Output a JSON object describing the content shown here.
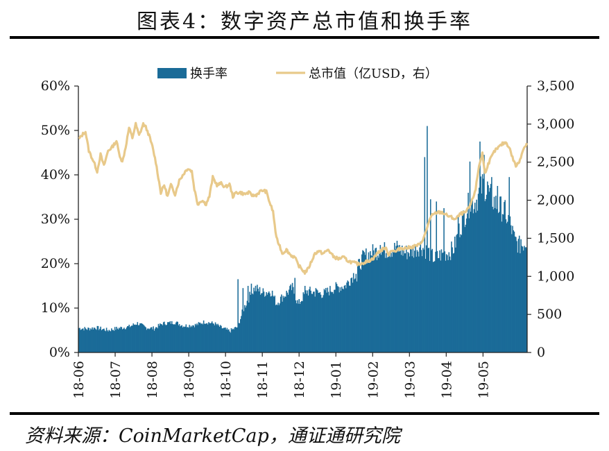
{
  "title": "图表4：数字资产总市值和换手率",
  "source": "资料来源：CoinMarketCap，通证通研究院",
  "colors": {
    "bar": "#1a6b98",
    "line": "#e8c98a",
    "text": "#111111",
    "axis": "#222222"
  },
  "chart_data": {
    "type": "bar+line",
    "categories": [
      "18-06",
      "18-07",
      "18-08",
      "18-09",
      "18-10",
      "18-11",
      "18-12",
      "19-01",
      "19-02",
      "19-03",
      "19-04",
      "19-05"
    ],
    "y_left": {
      "range": [
        0,
        60
      ],
      "ticks": [
        "0%",
        "10%",
        "20%",
        "30%",
        "40%",
        "50%",
        "60%"
      ]
    },
    "y_right": {
      "range": [
        0,
        3500
      ],
      "ticks": [
        "0",
        "500",
        "1,000",
        "1,500",
        "2,000",
        "2,500",
        "3,000",
        "3,500"
      ]
    },
    "legend": {
      "placement": "top",
      "entries": [
        "换手率",
        "总市值（亿USD，右）"
      ]
    },
    "series": [
      {
        "name": "换手率",
        "kind": "bar",
        "axis": "left",
        "unit": "%",
        "anchors": [
          [
            0,
            5.5
          ],
          [
            10,
            5.3
          ],
          [
            20,
            5.6
          ],
          [
            35,
            5.0
          ],
          [
            45,
            5.4
          ],
          [
            60,
            5.8
          ],
          [
            70,
            6.6
          ],
          [
            80,
            5.6
          ],
          [
            90,
            5.4
          ],
          [
            100,
            6.5
          ],
          [
            115,
            6.8
          ],
          [
            125,
            6.0
          ],
          [
            140,
            6.2
          ],
          [
            150,
            6.9
          ],
          [
            162,
            6.5
          ],
          [
            170,
            5.6
          ],
          [
            180,
            4.8
          ],
          [
            190,
            5.8
          ],
          [
            196,
            9.5
          ],
          [
            202,
            12.0
          ],
          [
            210,
            14.5
          ],
          [
            220,
            13.5
          ],
          [
            230,
            13.8
          ],
          [
            236,
            11.0
          ],
          [
            243,
            12.5
          ],
          [
            255,
            14.5
          ],
          [
            262,
            10.8
          ],
          [
            272,
            13.8
          ],
          [
            282,
            13.5
          ],
          [
            292,
            13.2
          ],
          [
            305,
            14.5
          ],
          [
            318,
            15.0
          ],
          [
            330,
            18.0
          ],
          [
            340,
            21.5
          ],
          [
            350,
            22.5
          ],
          [
            360,
            23.0
          ],
          [
            370,
            23.0
          ],
          [
            380,
            23.5
          ],
          [
            390,
            22.5
          ],
          [
            400,
            23.0
          ],
          [
            408,
            24.0
          ],
          [
            418,
            22.5
          ],
          [
            425,
            21.0
          ],
          [
            432,
            22.0
          ],
          [
            442,
            22.5
          ],
          [
            448,
            23.5
          ],
          [
            455,
            28.0
          ],
          [
            465,
            33.0
          ],
          [
            474,
            34.0
          ],
          [
            483,
            38.0
          ],
          [
            492,
            35.0
          ],
          [
            500,
            33.0
          ],
          [
            508,
            32.0
          ],
          [
            515,
            29.0
          ],
          [
            521,
            25.0
          ],
          [
            527,
            24.0
          ],
          [
            535,
            25.0
          ]
        ],
        "spikes": [
          [
            190,
            16.5
          ],
          [
            196,
            14.5
          ],
          [
            202,
            15.0
          ],
          [
            206,
            15.5
          ],
          [
            258,
            16.8
          ],
          [
            270,
            15.0
          ],
          [
            283,
            14.5
          ],
          [
            332,
            16.0
          ],
          [
            345,
            20.5
          ],
          [
            360,
            24.2
          ],
          [
            379,
            24.0
          ],
          [
            413,
            44.0
          ],
          [
            416,
            51.0
          ],
          [
            420,
            34.5
          ],
          [
            427,
            34.0
          ],
          [
            436,
            32.5
          ],
          [
            453,
            31.0
          ],
          [
            467,
            43.0
          ],
          [
            479,
            47.5
          ],
          [
            484,
            44.5
          ],
          [
            488,
            38.5
          ],
          [
            493,
            39.5
          ],
          [
            500,
            37.5
          ],
          [
            510,
            30.0
          ],
          [
            514,
            39.5
          ],
          [
            522,
            26.0
          ],
          [
            528,
            25.5
          ]
        ]
      },
      {
        "name": "总市值（亿USD，右）",
        "kind": "line",
        "axis": "right",
        "unit": "亿USD",
        "anchors": [
          [
            0,
            2800
          ],
          [
            5,
            2870
          ],
          [
            8,
            2900
          ],
          [
            12,
            2650
          ],
          [
            18,
            2500
          ],
          [
            22,
            2380
          ],
          [
            26,
            2600
          ],
          [
            30,
            2450
          ],
          [
            35,
            2650
          ],
          [
            40,
            2700
          ],
          [
            45,
            2780
          ],
          [
            48,
            2620
          ],
          [
            52,
            2500
          ],
          [
            56,
            2700
          ],
          [
            60,
            2950
          ],
          [
            64,
            2820
          ],
          [
            68,
            3000
          ],
          [
            72,
            2850
          ],
          [
            77,
            3000
          ],
          [
            80,
            2960
          ],
          [
            84,
            2850
          ],
          [
            88,
            2700
          ],
          [
            92,
            2500
          ],
          [
            95,
            2300
          ],
          [
            98,
            2100
          ],
          [
            102,
            2200
          ],
          [
            106,
            2050
          ],
          [
            110,
            2200
          ],
          [
            115,
            2080
          ],
          [
            120,
            2260
          ],
          [
            126,
            2360
          ],
          [
            130,
            2420
          ],
          [
            135,
            2380
          ],
          [
            138,
            2150
          ],
          [
            142,
            1950
          ],
          [
            147,
            2000
          ],
          [
            152,
            1950
          ],
          [
            156,
            2050
          ],
          [
            160,
            2300
          ],
          [
            165,
            2200
          ],
          [
            170,
            2220
          ],
          [
            175,
            2170
          ],
          [
            180,
            2210
          ],
          [
            184,
            2050
          ],
          [
            188,
            2100
          ],
          [
            193,
            2100
          ],
          [
            198,
            2080
          ],
          [
            203,
            2100
          ],
          [
            208,
            2060
          ],
          [
            212,
            2070
          ],
          [
            216,
            2110
          ],
          [
            220,
            2130
          ],
          [
            224,
            2110
          ],
          [
            228,
            1970
          ],
          [
            232,
            1850
          ],
          [
            236,
            1500
          ],
          [
            240,
            1400
          ],
          [
            243,
            1300
          ],
          [
            248,
            1350
          ],
          [
            253,
            1280
          ],
          [
            258,
            1250
          ],
          [
            262,
            1150
          ],
          [
            266,
            1100
          ],
          [
            270,
            1050
          ],
          [
            274,
            1100
          ],
          [
            278,
            1200
          ],
          [
            282,
            1300
          ],
          [
            286,
            1330
          ],
          [
            292,
            1300
          ],
          [
            298,
            1350
          ],
          [
            304,
            1260
          ],
          [
            310,
            1230
          ],
          [
            316,
            1250
          ],
          [
            322,
            1200
          ],
          [
            328,
            1180
          ],
          [
            334,
            1160
          ],
          [
            340,
            1180
          ],
          [
            346,
            1200
          ],
          [
            352,
            1240
          ],
          [
            358,
            1320
          ],
          [
            362,
            1350
          ],
          [
            366,
            1380
          ],
          [
            370,
            1290
          ],
          [
            374,
            1350
          ],
          [
            378,
            1320
          ],
          [
            384,
            1370
          ],
          [
            390,
            1370
          ],
          [
            396,
            1380
          ],
          [
            402,
            1400
          ],
          [
            408,
            1420
          ],
          [
            414,
            1560
          ],
          [
            418,
            1720
          ],
          [
            422,
            1800
          ],
          [
            428,
            1840
          ],
          [
            434,
            1840
          ],
          [
            440,
            1800
          ],
          [
            446,
            1770
          ],
          [
            450,
            1750
          ],
          [
            456,
            1820
          ],
          [
            462,
            1840
          ],
          [
            466,
            1900
          ],
          [
            470,
            2000
          ],
          [
            474,
            2150
          ],
          [
            478,
            2450
          ],
          [
            482,
            2620
          ],
          [
            485,
            2350
          ],
          [
            488,
            2450
          ],
          [
            492,
            2550
          ],
          [
            497,
            2650
          ],
          [
            502,
            2700
          ],
          [
            506,
            2740
          ],
          [
            510,
            2760
          ],
          [
            514,
            2700
          ],
          [
            518,
            2560
          ],
          [
            522,
            2450
          ],
          [
            526,
            2500
          ],
          [
            530,
            2650
          ],
          [
            535,
            2750
          ]
        ]
      }
    ]
  }
}
